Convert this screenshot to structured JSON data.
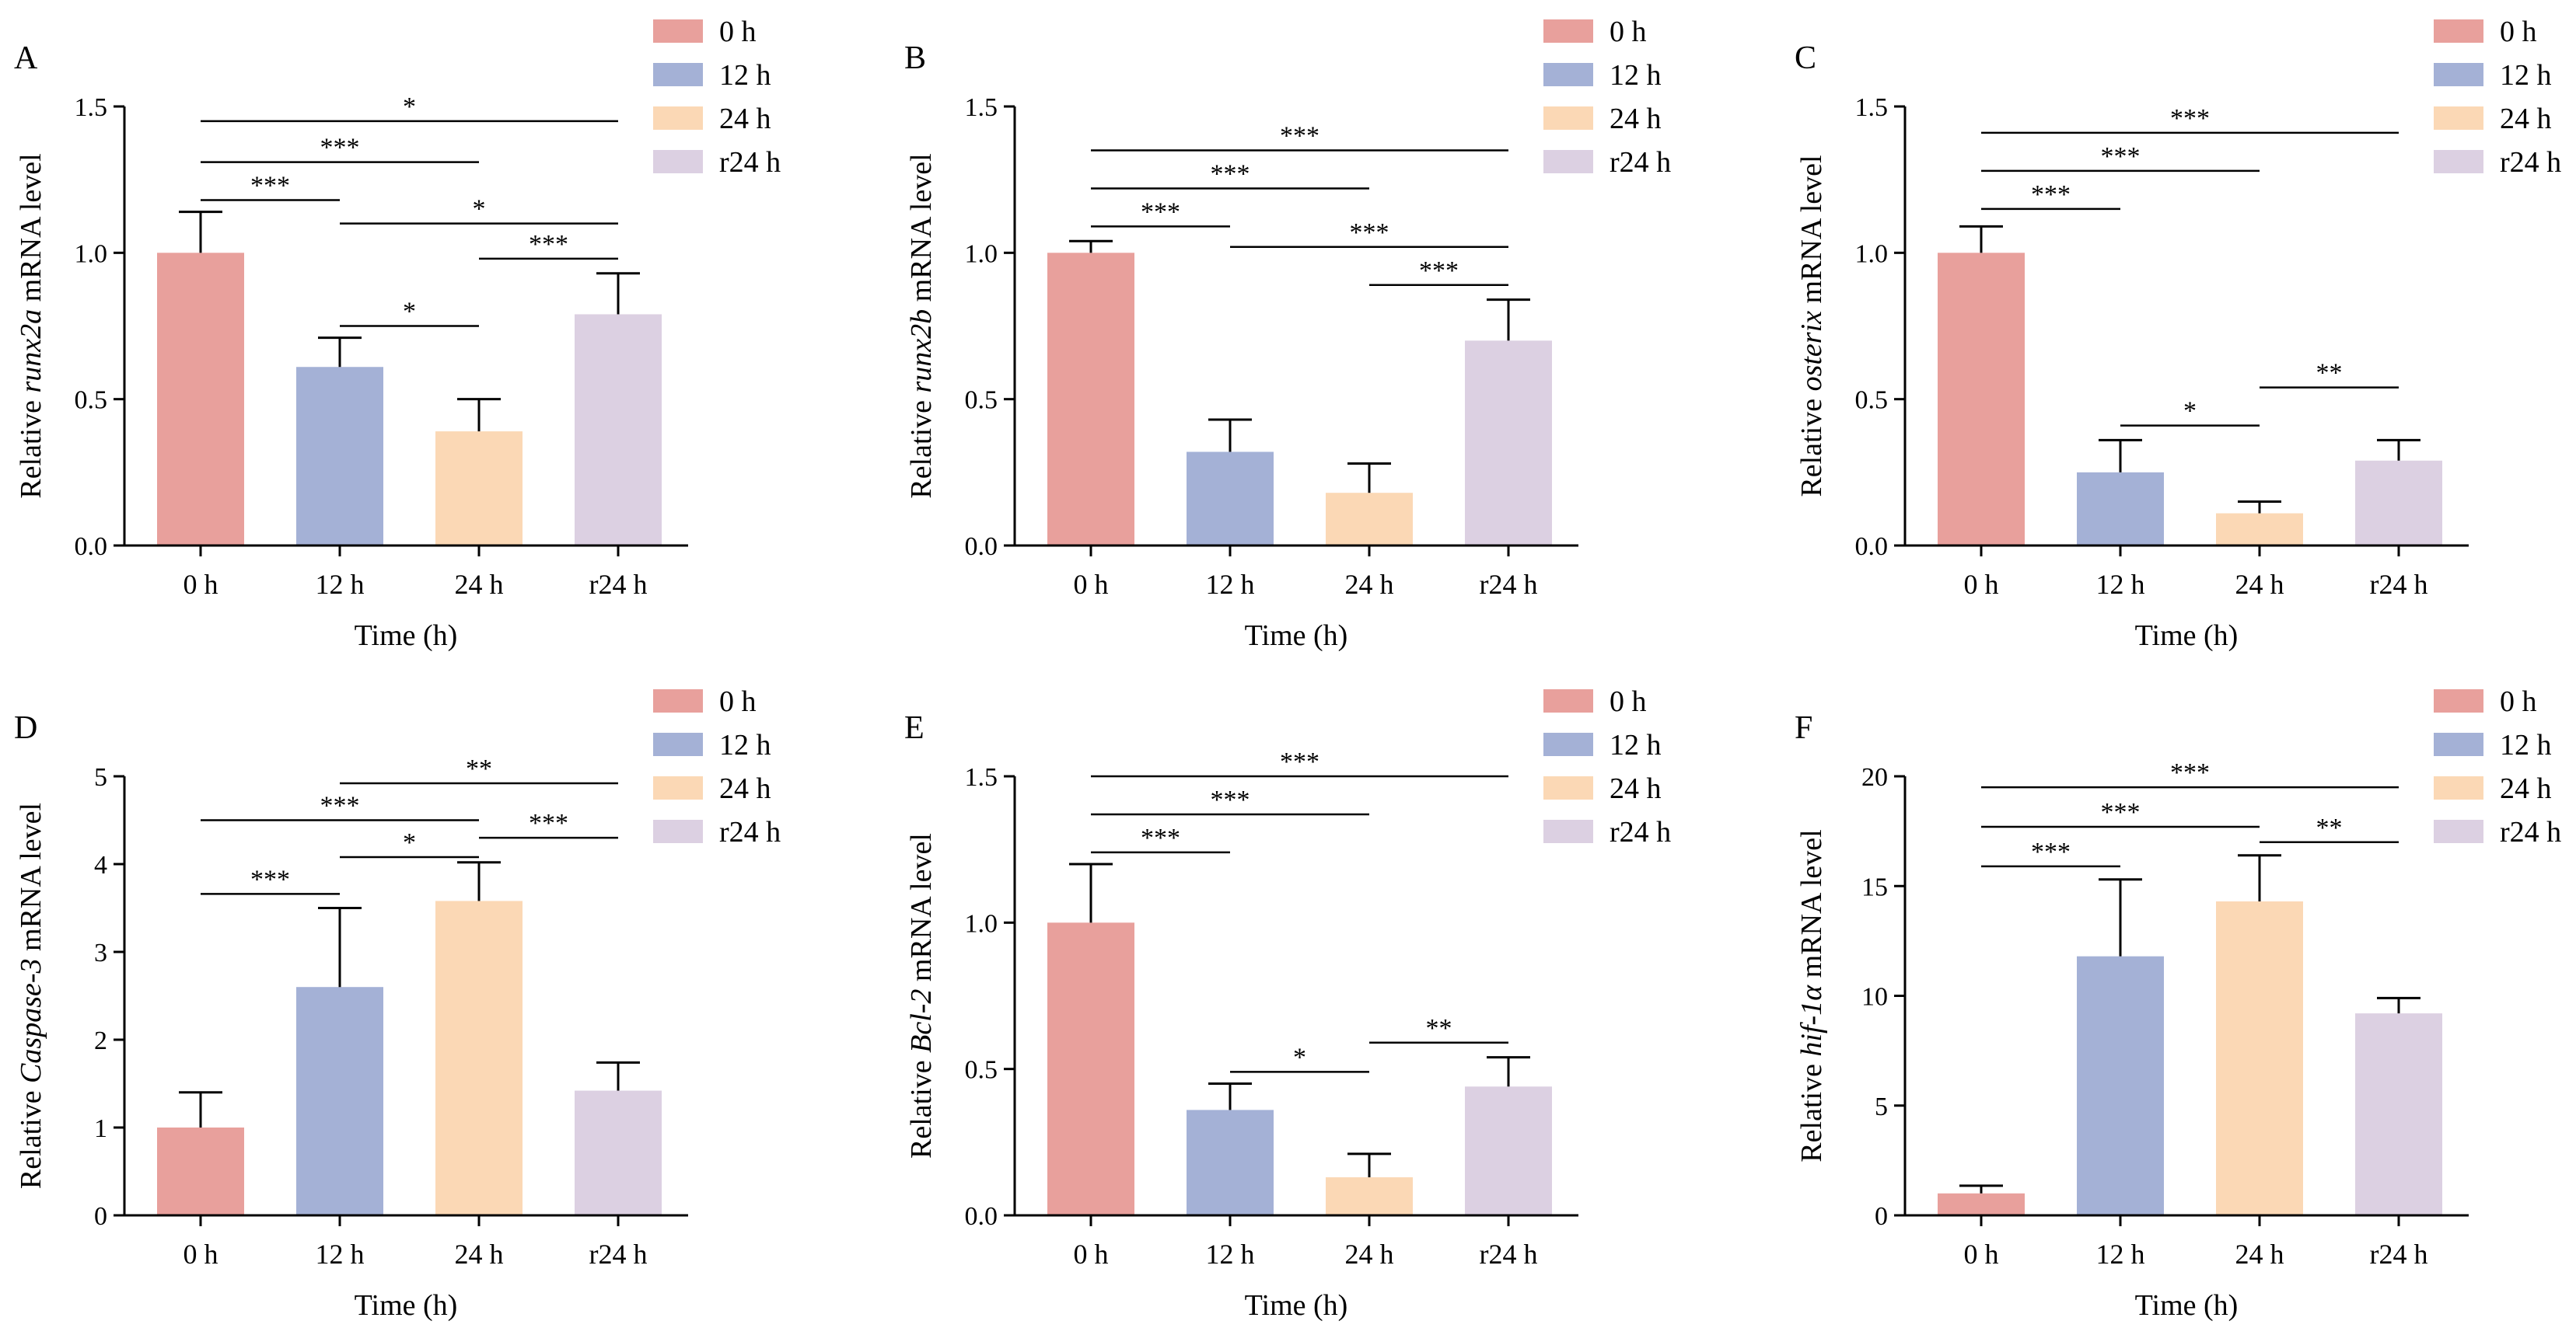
{
  "chart_data": [
    {
      "type": "bar",
      "panel_label": "A",
      "ylabel_pre": "Relative ",
      "ylabel_gene": "runx2a",
      "ylabel_post": " mRNA level",
      "xlabel": "Time (h)",
      "categories": [
        "0 h",
        "12 h",
        "24 h",
        "r24 h"
      ],
      "values": [
        1.0,
        0.61,
        0.39,
        0.79
      ],
      "errors": [
        0.14,
        0.1,
        0.11,
        0.14
      ],
      "ylim": [
        0,
        1.5
      ],
      "ticks": [
        0.0,
        0.5,
        1.0,
        1.5
      ],
      "tick_labels": [
        "0.0",
        "0.5",
        "1.0",
        "1.5"
      ],
      "significance": [
        {
          "from": 0,
          "to": 1,
          "label": "***",
          "y": 1.18
        },
        {
          "from": 0,
          "to": 2,
          "label": "***",
          "y": 1.31
        },
        {
          "from": 0,
          "to": 3,
          "label": "*",
          "y": 1.45
        },
        {
          "from": 1,
          "to": 3,
          "label": "*",
          "y": 1.1
        },
        {
          "from": 2,
          "to": 3,
          "label": "***",
          "y": 0.98
        },
        {
          "from": 1,
          "to": 2,
          "label": "*",
          "y": 0.75
        }
      ],
      "legend": [
        "0 h",
        "12 h",
        "24 h",
        "r24 h"
      ]
    },
    {
      "type": "bar",
      "panel_label": "B",
      "ylabel_pre": "Relative ",
      "ylabel_gene": "runx2b",
      "ylabel_post": " mRNA level",
      "xlabel": "Time (h)",
      "categories": [
        "0 h",
        "12 h",
        "24 h",
        "r24 h"
      ],
      "values": [
        1.0,
        0.32,
        0.18,
        0.7
      ],
      "errors": [
        0.04,
        0.11,
        0.1,
        0.14
      ],
      "ylim": [
        0,
        1.5
      ],
      "ticks": [
        0.0,
        0.5,
        1.0,
        1.5
      ],
      "tick_labels": [
        "0.0",
        "0.5",
        "1.0",
        "1.5"
      ],
      "significance": [
        {
          "from": 0,
          "to": 1,
          "label": "***",
          "y": 1.09
        },
        {
          "from": 0,
          "to": 2,
          "label": "***",
          "y": 1.22
        },
        {
          "from": 0,
          "to": 3,
          "label": "***",
          "y": 1.35
        },
        {
          "from": 1,
          "to": 3,
          "label": "***",
          "y": 1.02
        },
        {
          "from": 2,
          "to": 3,
          "label": "***",
          "y": 0.89
        }
      ],
      "legend": [
        "0 h",
        "12 h",
        "24 h",
        "r24 h"
      ]
    },
    {
      "type": "bar",
      "panel_label": "C",
      "ylabel_pre": "Relative ",
      "ylabel_gene": "osterix",
      "ylabel_post": " mRNA level",
      "xlabel": "Time (h)",
      "categories": [
        "0 h",
        "12 h",
        "24 h",
        "r24 h"
      ],
      "values": [
        1.0,
        0.25,
        0.11,
        0.29
      ],
      "errors": [
        0.09,
        0.11,
        0.04,
        0.07
      ],
      "ylim": [
        0,
        1.5
      ],
      "ticks": [
        0.0,
        0.5,
        1.0,
        1.5
      ],
      "tick_labels": [
        "0.0",
        "0.5",
        "1.0",
        "1.5"
      ],
      "significance": [
        {
          "from": 0,
          "to": 1,
          "label": "***",
          "y": 1.15
        },
        {
          "from": 0,
          "to": 2,
          "label": "***",
          "y": 1.28
        },
        {
          "from": 0,
          "to": 3,
          "label": "***",
          "y": 1.41
        },
        {
          "from": 1,
          "to": 2,
          "label": "*",
          "y": 0.41
        },
        {
          "from": 2,
          "to": 3,
          "label": "**",
          "y": 0.54
        }
      ],
      "legend": [
        "0 h",
        "12 h",
        "24 h",
        "r24 h"
      ]
    },
    {
      "type": "bar",
      "panel_label": "D",
      "ylabel_pre": "Relative ",
      "ylabel_gene": "Caspase-3",
      "ylabel_post": " mRNA level",
      "xlabel": "Time (h)",
      "categories": [
        "0 h",
        "12 h",
        "24 h",
        "r24 h"
      ],
      "values": [
        1.0,
        2.6,
        3.58,
        1.42
      ],
      "errors": [
        0.4,
        0.9,
        0.44,
        0.32
      ],
      "ylim": [
        0,
        5
      ],
      "ticks": [
        0,
        1,
        2,
        3,
        4,
        5
      ],
      "tick_labels": [
        "0",
        "1",
        "2",
        "3",
        "4",
        "5"
      ],
      "significance": [
        {
          "from": 0,
          "to": 1,
          "label": "***",
          "y": 3.66
        },
        {
          "from": 0,
          "to": 2,
          "label": "***",
          "y": 4.5
        },
        {
          "from": 1,
          "to": 3,
          "label": "**",
          "y": 4.92
        },
        {
          "from": 1,
          "to": 2,
          "label": "*",
          "y": 4.08
        },
        {
          "from": 2,
          "to": 3,
          "label": "***",
          "y": 4.3
        }
      ],
      "legend": [
        "0 h",
        "12 h",
        "24 h",
        "r24 h"
      ]
    },
    {
      "type": "bar",
      "panel_label": "E",
      "ylabel_pre": "Relative ",
      "ylabel_gene": "Bcl-2",
      "ylabel_post": " mRNA level",
      "xlabel": "Time (h)",
      "categories": [
        "0 h",
        "12 h",
        "24 h",
        "r24 h"
      ],
      "values": [
        1.0,
        0.36,
        0.13,
        0.44
      ],
      "errors": [
        0.2,
        0.09,
        0.08,
        0.1
      ],
      "ylim": [
        0,
        1.5
      ],
      "ticks": [
        0.0,
        0.5,
        1.0,
        1.5
      ],
      "tick_labels": [
        "0.0",
        "0.5",
        "1.0",
        "1.5"
      ],
      "significance": [
        {
          "from": 0,
          "to": 1,
          "label": "***",
          "y": 1.24
        },
        {
          "from": 0,
          "to": 2,
          "label": "***",
          "y": 1.37
        },
        {
          "from": 0,
          "to": 3,
          "label": "***",
          "y": 1.5
        },
        {
          "from": 1,
          "to": 2,
          "label": "*",
          "y": 0.49
        },
        {
          "from": 2,
          "to": 3,
          "label": "**",
          "y": 0.59
        }
      ],
      "legend": [
        "0 h",
        "12 h",
        "24 h",
        "r24 h"
      ]
    },
    {
      "type": "bar",
      "panel_label": "F",
      "ylabel_pre": "Relative ",
      "ylabel_gene": "hif-1α",
      "ylabel_post": " mRNA level",
      "xlabel": "Time (h)",
      "categories": [
        "0 h",
        "12 h",
        "24 h",
        "r24 h"
      ],
      "values": [
        1.0,
        11.8,
        14.3,
        9.2
      ],
      "errors": [
        0.35,
        3.5,
        2.1,
        0.7
      ],
      "ylim": [
        0,
        20
      ],
      "ticks": [
        0,
        5,
        10,
        15,
        20
      ],
      "tick_labels": [
        "0",
        "5",
        "10",
        "15",
        "20"
      ],
      "significance": [
        {
          "from": 0,
          "to": 1,
          "label": "***",
          "y": 15.9
        },
        {
          "from": 0,
          "to": 2,
          "label": "***",
          "y": 17.7
        },
        {
          "from": 0,
          "to": 3,
          "label": "***",
          "y": 19.5
        },
        {
          "from": 2,
          "to": 3,
          "label": "**",
          "y": 17.0
        }
      ],
      "legend": [
        "0 h",
        "12 h",
        "24 h",
        "r24 h"
      ]
    }
  ],
  "colors": {
    "bars": [
      "#e8a09c",
      "#a4b1d6",
      "#fbd8b5",
      "#dcd0e2"
    ],
    "ink": "#000000"
  }
}
